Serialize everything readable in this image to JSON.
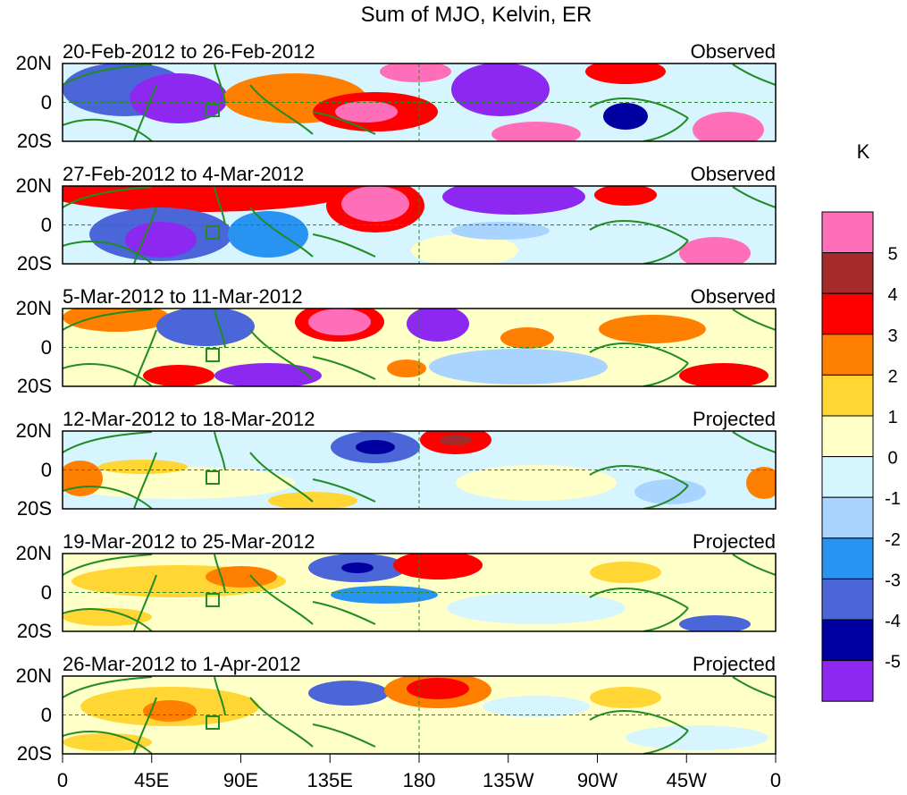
{
  "title": "Sum of MJO, Kelvin, ER",
  "units_label": "K",
  "lat_ticks": [
    "20N",
    "0",
    "20S"
  ],
  "lon_ticks": [
    "0",
    "45E",
    "90E",
    "135E",
    "180",
    "135W",
    "90W",
    "45W",
    "0"
  ],
  "panels": [
    {
      "date_range": "20-Feb-2012 to 26-Feb-2012",
      "status": "Observed"
    },
    {
      "date_range": "27-Feb-2012 to 4-Mar-2012",
      "status": "Observed"
    },
    {
      "date_range": "5-Mar-2012 to 11-Mar-2012",
      "status": "Observed"
    },
    {
      "date_range": "12-Mar-2012 to 18-Mar-2012",
      "status": "Projected"
    },
    {
      "date_range": "19-Mar-2012 to 25-Mar-2012",
      "status": "Projected"
    },
    {
      "date_range": "26-Mar-2012 to 1-Apr-2012",
      "status": "Projected"
    }
  ],
  "colorbar": {
    "labels": [
      "5",
      "4",
      "3",
      "2",
      "1",
      "0",
      "-1",
      "-2",
      "-3",
      "-4",
      "-5"
    ],
    "colors": [
      "#ff6fb9",
      "#a52a2a",
      "#ff0000",
      "#ff7f00",
      "#ffd633",
      "#ffffc8",
      "#d6f5ff",
      "#a8d4ff",
      "#2893f0",
      "#4a66d9",
      "#0000a0",
      "#8c28f0"
    ]
  },
  "colors": {
    "land": "#228b22",
    "grid": "#228b22",
    "frame": "#000000"
  }
}
